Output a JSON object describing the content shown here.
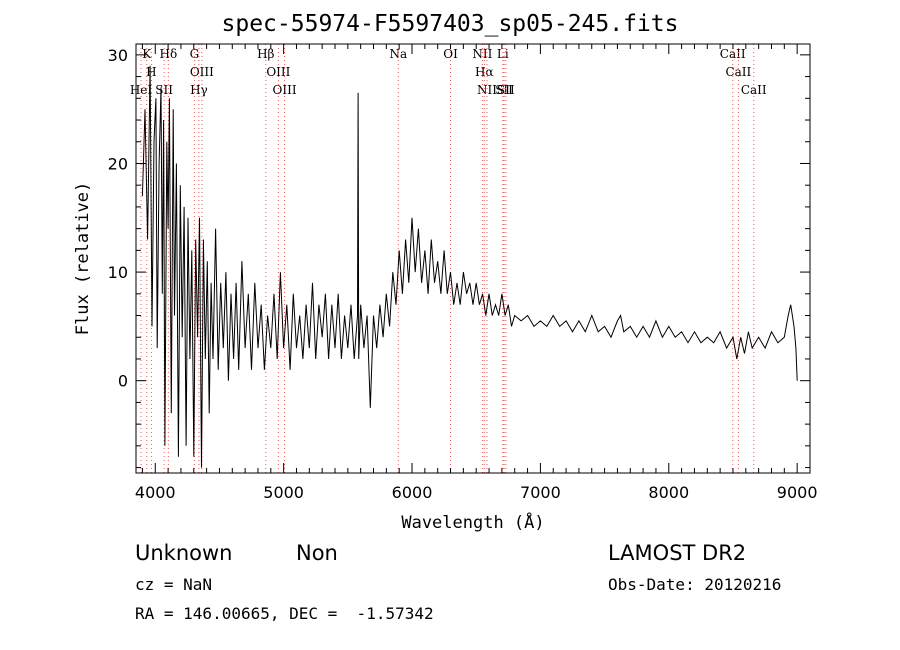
{
  "chart_data": {
    "type": "line",
    "title": "spec-55974-F5597403_sp05-245.fits",
    "xlabel": "Wavelength (Å)",
    "ylabel": "Flux (relative)",
    "xlim": [
      3850,
      9100
    ],
    "ylim": [
      -8.5,
      31
    ],
    "xticks": [
      4000,
      5000,
      6000,
      7000,
      8000,
      9000
    ],
    "yticks": [
      0,
      10,
      20,
      30
    ],
    "grid": false,
    "series": [
      {
        "points": [
          [
            3900,
            17
          ],
          [
            3920,
            25
          ],
          [
            3940,
            13
          ],
          [
            3960,
            29
          ],
          [
            3975,
            5
          ],
          [
            3990,
            22
          ],
          [
            4005,
            26
          ],
          [
            4015,
            3
          ],
          [
            4030,
            20
          ],
          [
            4045,
            27
          ],
          [
            4055,
            8
          ],
          [
            4065,
            24
          ],
          [
            4075,
            -6
          ],
          [
            4090,
            22
          ],
          [
            4100,
            14
          ],
          [
            4110,
            26
          ],
          [
            4125,
            -3
          ],
          [
            4140,
            25
          ],
          [
            4150,
            6
          ],
          [
            4165,
            20
          ],
          [
            4180,
            -7
          ],
          [
            4195,
            18
          ],
          [
            4210,
            4
          ],
          [
            4225,
            16
          ],
          [
            4240,
            -6
          ],
          [
            4255,
            15
          ],
          [
            4270,
            2
          ],
          [
            4285,
            12
          ],
          [
            4300,
            -7
          ],
          [
            4315,
            13
          ],
          [
            4330,
            4
          ],
          [
            4345,
            15
          ],
          [
            4360,
            -8
          ],
          [
            4375,
            13
          ],
          [
            4390,
            2
          ],
          [
            4405,
            11
          ],
          [
            4420,
            -3
          ],
          [
            4435,
            9
          ],
          [
            4450,
            2
          ],
          [
            4470,
            14
          ],
          [
            4490,
            1
          ],
          [
            4510,
            9
          ],
          [
            4530,
            3
          ],
          [
            4550,
            10
          ],
          [
            4570,
            0
          ],
          [
            4590,
            8
          ],
          [
            4610,
            2
          ],
          [
            4630,
            9
          ],
          [
            4650,
            1
          ],
          [
            4675,
            11
          ],
          [
            4700,
            3
          ],
          [
            4725,
            8
          ],
          [
            4750,
            1
          ],
          [
            4775,
            9
          ],
          [
            4800,
            3
          ],
          [
            4825,
            7
          ],
          [
            4850,
            1
          ],
          [
            4875,
            6
          ],
          [
            4900,
            3
          ],
          [
            4925,
            8
          ],
          [
            4950,
            2
          ],
          [
            4975,
            10
          ],
          [
            5000,
            3
          ],
          [
            5025,
            7
          ],
          [
            5050,
            1
          ],
          [
            5075,
            8
          ],
          [
            5100,
            3
          ],
          [
            5125,
            6
          ],
          [
            5150,
            2
          ],
          [
            5175,
            7
          ],
          [
            5200,
            3
          ],
          [
            5225,
            9
          ],
          [
            5250,
            2
          ],
          [
            5275,
            7
          ],
          [
            5300,
            4
          ],
          [
            5325,
            8
          ],
          [
            5350,
            2
          ],
          [
            5375,
            7
          ],
          [
            5400,
            3
          ],
          [
            5425,
            8
          ],
          [
            5450,
            2
          ],
          [
            5475,
            6
          ],
          [
            5500,
            3
          ],
          [
            5525,
            7
          ],
          [
            5550,
            2
          ],
          [
            5575,
            6
          ],
          [
            5580,
            26.5
          ],
          [
            5585,
            2
          ],
          [
            5600,
            7
          ],
          [
            5625,
            3
          ],
          [
            5650,
            6
          ],
          [
            5675,
            -2.5
          ],
          [
            5700,
            6
          ],
          [
            5725,
            3
          ],
          [
            5750,
            7
          ],
          [
            5775,
            4
          ],
          [
            5800,
            8
          ],
          [
            5825,
            5
          ],
          [
            5850,
            10
          ],
          [
            5875,
            7
          ],
          [
            5900,
            12
          ],
          [
            5925,
            8
          ],
          [
            5950,
            13
          ],
          [
            5975,
            9
          ],
          [
            6000,
            15
          ],
          [
            6025,
            10
          ],
          [
            6050,
            14
          ],
          [
            6075,
            9
          ],
          [
            6100,
            12
          ],
          [
            6125,
            8
          ],
          [
            6150,
            13
          ],
          [
            6175,
            9
          ],
          [
            6200,
            11
          ],
          [
            6225,
            8
          ],
          [
            6250,
            12
          ],
          [
            6275,
            8
          ],
          [
            6300,
            10
          ],
          [
            6325,
            7
          ],
          [
            6350,
            9
          ],
          [
            6375,
            7
          ],
          [
            6400,
            10
          ],
          [
            6425,
            8
          ],
          [
            6450,
            9
          ],
          [
            6475,
            7
          ],
          [
            6500,
            9
          ],
          [
            6525,
            7
          ],
          [
            6550,
            8
          ],
          [
            6575,
            6
          ],
          [
            6600,
            8
          ],
          [
            6625,
            6
          ],
          [
            6650,
            7
          ],
          [
            6675,
            6
          ],
          [
            6700,
            8
          ],
          [
            6725,
            6
          ],
          [
            6750,
            7
          ],
          [
            6775,
            5
          ],
          [
            6800,
            6
          ],
          [
            6850,
            5.5
          ],
          [
            6900,
            6
          ],
          [
            6950,
            5
          ],
          [
            7000,
            5.5
          ],
          [
            7050,
            5
          ],
          [
            7100,
            6
          ],
          [
            7150,
            5
          ],
          [
            7200,
            5.5
          ],
          [
            7250,
            4.5
          ],
          [
            7300,
            5.5
          ],
          [
            7350,
            4.5
          ],
          [
            7400,
            6
          ],
          [
            7450,
            4.5
          ],
          [
            7500,
            5
          ],
          [
            7550,
            4
          ],
          [
            7600,
            5.5
          ],
          [
            7625,
            6
          ],
          [
            7650,
            4.5
          ],
          [
            7700,
            5
          ],
          [
            7750,
            4
          ],
          [
            7800,
            5
          ],
          [
            7850,
            4
          ],
          [
            7900,
            5.5
          ],
          [
            7950,
            4
          ],
          [
            8000,
            5
          ],
          [
            8050,
            4
          ],
          [
            8100,
            4.5
          ],
          [
            8150,
            3.5
          ],
          [
            8200,
            4.5
          ],
          [
            8250,
            3.5
          ],
          [
            8300,
            4
          ],
          [
            8350,
            3.5
          ],
          [
            8400,
            4.5
          ],
          [
            8450,
            3
          ],
          [
            8500,
            4
          ],
          [
            8530,
            2
          ],
          [
            8560,
            4
          ],
          [
            8590,
            2.5
          ],
          [
            8620,
            4.5
          ],
          [
            8650,
            3
          ],
          [
            8700,
            4
          ],
          [
            8750,
            3
          ],
          [
            8800,
            4.5
          ],
          [
            8850,
            3.5
          ],
          [
            8900,
            4
          ],
          [
            8930,
            6
          ],
          [
            8950,
            7
          ],
          [
            8975,
            5
          ],
          [
            8990,
            3
          ],
          [
            9000,
            0
          ]
        ]
      }
    ],
    "line_markers": [
      {
        "x": 3934,
        "label": "K"
      },
      {
        "x": 3970,
        "label": "H"
      },
      {
        "x": 3889,
        "label": "HeI"
      },
      {
        "x": 4102,
        "label": "Hδ"
      },
      {
        "x": 4069,
        "label": "SII"
      },
      {
        "x": 4305,
        "label": "G"
      },
      {
        "x": 4363,
        "label": "OIII"
      },
      {
        "x": 4340,
        "label": "Hγ"
      },
      {
        "x": 4861,
        "label": "Hβ"
      },
      {
        "x": 4959,
        "label": "OIII"
      },
      {
        "x": 5007,
        "label": "OIII"
      },
      {
        "x": 5893,
        "label": "Na"
      },
      {
        "x": 6300,
        "label": "OI"
      },
      {
        "x": 6548,
        "label": "NII"
      },
      {
        "x": 6563,
        "label": "Hα"
      },
      {
        "x": 6584,
        "label": "NII"
      },
      {
        "x": 6707,
        "label": "Li"
      },
      {
        "x": 6717,
        "label": "SII"
      },
      {
        "x": 6731,
        "label": "SII"
      },
      {
        "x": 8498,
        "label": "CaII"
      },
      {
        "x": 8542,
        "label": "CaII"
      },
      {
        "x": 8662,
        "label": "CaII"
      }
    ]
  },
  "footer": {
    "class_label": "Unknown",
    "subclass_label": "Non",
    "survey": "LAMOST DR2",
    "cz": "cz = NaN",
    "obs_date": "Obs-Date: 20120216",
    "coords": "RA = 146.00665, DEC =  -1.57342"
  },
  "colors": {
    "axis": "#000000",
    "marker_line": "#e06060",
    "marker_line_blue": "#7c8fb0",
    "spectrum": "#000000"
  }
}
